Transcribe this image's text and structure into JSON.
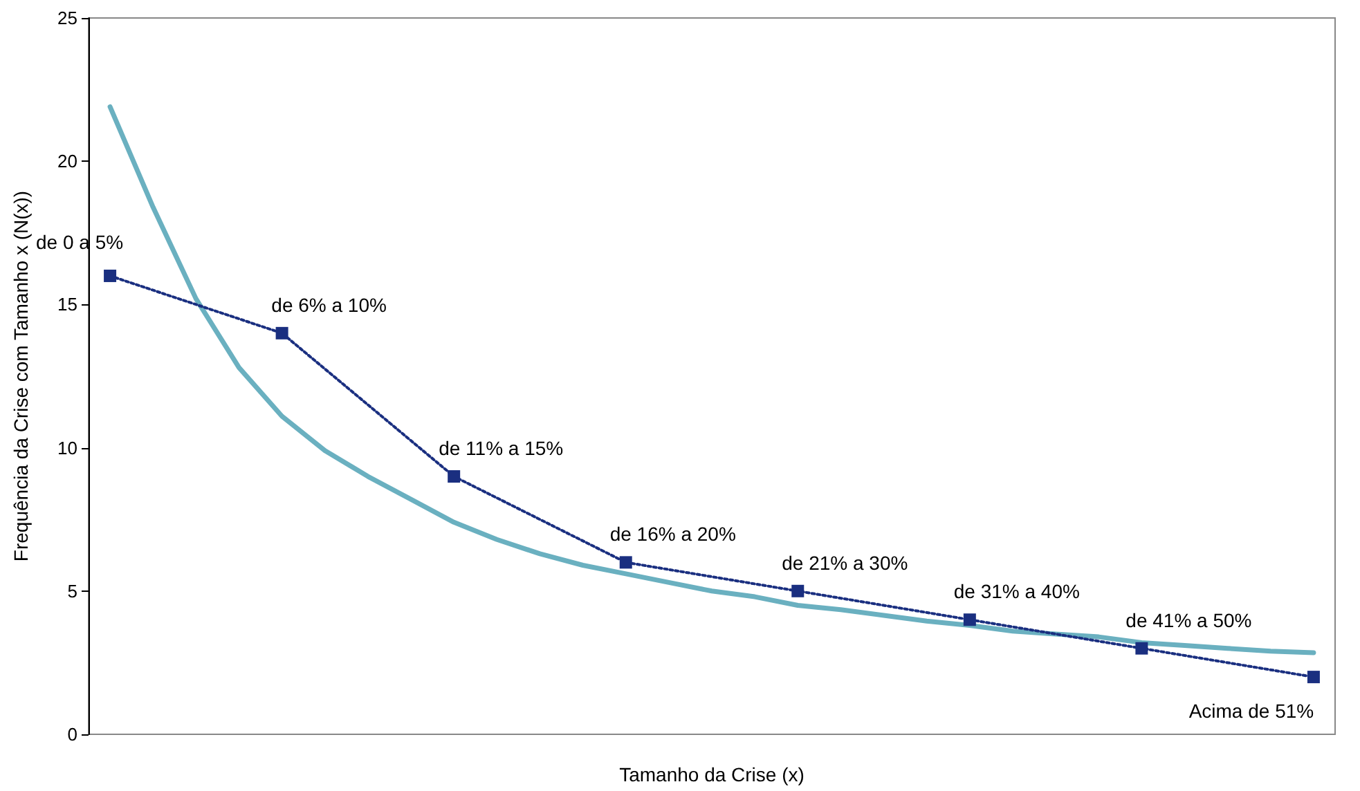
{
  "chart_data": {
    "type": "line",
    "xlabel": "Tamanho da Crise (x)",
    "ylabel": "Frequência da Crise com Tamanho x (N(x))",
    "categories": [
      null,
      null,
      null,
      null,
      null,
      null,
      null,
      null,
      null,
      null,
      null,
      null,
      null,
      null,
      null,
      null,
      null,
      null,
      null,
      null,
      null,
      null,
      null,
      null,
      null,
      null,
      null,
      null,
      null
    ],
    "ylim": [
      0,
      25
    ],
    "yticks": [
      0,
      5,
      10,
      15,
      20,
      25
    ],
    "grid": false,
    "tick_labels": "y",
    "series": [
      {
        "color": "#6ab0c0",
        "marker": "none",
        "line_style": "solid",
        "values": [
          21.9,
          18.4,
          15.2,
          12.8,
          11.1,
          9.9,
          9.0,
          8.2,
          7.4,
          6.8,
          6.3,
          5.9,
          5.6,
          5.3,
          5.0,
          4.8,
          4.5,
          4.35,
          4.15,
          3.95,
          3.8,
          3.6,
          3.5,
          3.4,
          3.2,
          3.1,
          3.0,
          2.9,
          2.85
        ]
      },
      {
        "color": "#1a2f80",
        "marker": "square",
        "line_style": "dotted",
        "values": [
          16,
          null,
          null,
          null,
          14,
          null,
          null,
          null,
          9,
          null,
          null,
          null,
          6,
          null,
          null,
          null,
          5,
          null,
          null,
          null,
          4,
          null,
          null,
          null,
          3,
          null,
          null,
          null,
          2
        ]
      }
    ],
    "annotations": [
      "de 0 a 5%",
      "de 6% a 10%",
      "de 11% a 15%",
      "de 16% a 20%",
      "de 21% a 30%",
      "de 31% a 40%",
      "de 41% a 50%",
      "Acima de 51%"
    ]
  }
}
